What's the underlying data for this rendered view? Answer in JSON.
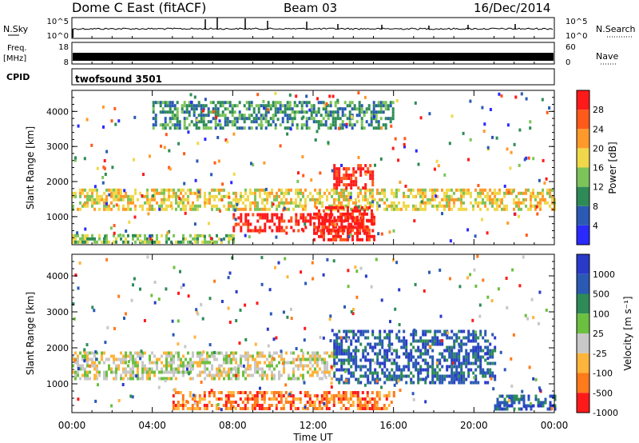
{
  "header": {
    "site": "Dome C East (fitACF)",
    "beam": "Beam 03",
    "date": "16/Dec/2014"
  },
  "strips": {
    "nsky": {
      "label": "N.Sky",
      "ticks": [
        "10^5",
        "10^0"
      ]
    },
    "nsearch": {
      "label": "N.Search",
      "ticks": [
        "10^5",
        "10^0"
      ]
    },
    "freq": {
      "label_top": "Freq.",
      "label_bottom": "[MHz]",
      "ticks": [
        "18",
        "8"
      ]
    },
    "nave": {
      "label": "Nave",
      "ticks": [
        "60",
        "0"
      ]
    },
    "cpid": {
      "label": "CPID",
      "value": "twofsound 3501"
    }
  },
  "chart_data": [
    {
      "type": "heatmap",
      "panel": "power",
      "ylabel": "Slant Range [km]",
      "yticks": [
        "1000",
        "2000",
        "3000",
        "4000"
      ],
      "ylim": [
        200,
        4600
      ],
      "xlim_hours": [
        0,
        24
      ],
      "colorbar": {
        "label": "Power [dB]",
        "ticks": [
          "4",
          "8",
          "12",
          "16",
          "20",
          "24",
          "28"
        ],
        "colors": [
          "#2a2aff",
          "#2a5ab4",
          "#2e8b57",
          "#7cc45a",
          "#f0d84a",
          "#ff9a2a",
          "#ff5a1a",
          "#ff1a1a"
        ]
      },
      "bands": [
        {
          "range_km": [
            1200,
            1800
          ],
          "hours": [
            0,
            24
          ],
          "level_db": 16
        },
        {
          "range_km": [
            600,
            1100
          ],
          "hours": [
            8,
            15
          ],
          "level_db": 26
        },
        {
          "range_km": [
            250,
            500
          ],
          "hours": [
            0,
            8
          ],
          "level_db": 10
        },
        {
          "range_km": [
            300,
            1300
          ],
          "hours": [
            12,
            15
          ],
          "level_db": 28
        },
        {
          "range_km": [
            1800,
            2500
          ],
          "hours": [
            13,
            15
          ],
          "level_db": 26
        },
        {
          "range_km": [
            3500,
            4300
          ],
          "hours": [
            4,
            16
          ],
          "level_db": 8
        }
      ]
    },
    {
      "type": "heatmap",
      "panel": "velocity",
      "ylabel": "Slant Range [km]",
      "yticks": [
        "1000",
        "2000",
        "3000",
        "4000"
      ],
      "ylim": [
        200,
        4600
      ],
      "xlim_hours": [
        0,
        24
      ],
      "colorbar": {
        "label": "Velocity [m s⁻¹]",
        "ticks": [
          "1000",
          "500",
          "100",
          "25",
          "-25",
          "-100",
          "-500",
          "-1000"
        ],
        "colors": [
          "#2a3ac8",
          "#2a5ab4",
          "#2e8b57",
          "#6cc040",
          "#c8c8c8",
          "#ffb43c",
          "#ff7a1a",
          "#ff1a1a"
        ]
      },
      "bands": [
        {
          "range_km": [
            1100,
            1900
          ],
          "hours": [
            0,
            13
          ],
          "velocity": 0
        },
        {
          "range_km": [
            300,
            800
          ],
          "hours": [
            5,
            16
          ],
          "velocity": -300
        },
        {
          "range_km": [
            1000,
            2500
          ],
          "hours": [
            13,
            21
          ],
          "velocity": 300
        },
        {
          "range_km": [
            300,
            700
          ],
          "hours": [
            21,
            24
          ],
          "velocity": 300
        }
      ]
    }
  ],
  "xaxis": {
    "label": "Time UT",
    "ticks": [
      "00:00",
      "04:00",
      "08:00",
      "12:00",
      "16:00",
      "20:00",
      "00:00"
    ]
  }
}
